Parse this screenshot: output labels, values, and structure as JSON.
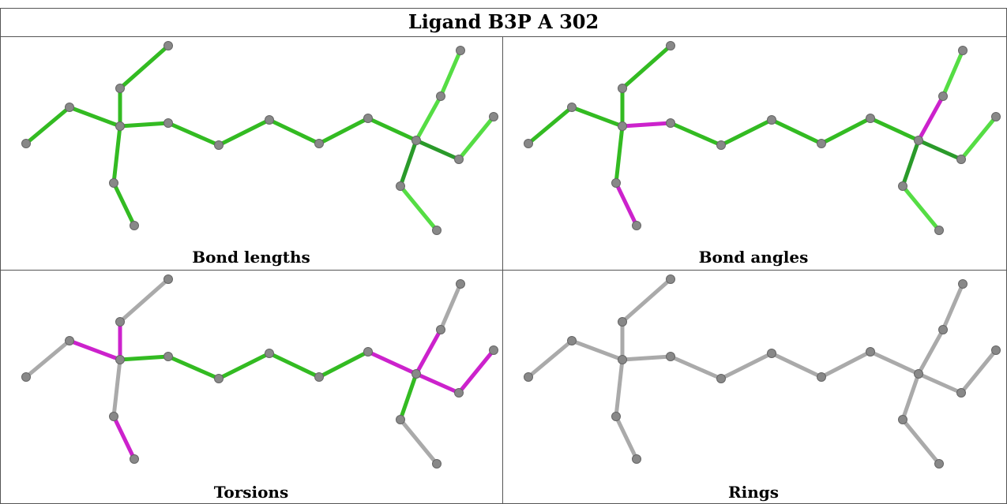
{
  "title": "Ligand B3P A 302",
  "panels": [
    {
      "id": "bond-lengths",
      "caption": "Bond lengths",
      "bonds": [
        "g",
        "g",
        "g",
        "g",
        "g",
        "g",
        "g",
        "g",
        "g",
        "g",
        "g",
        "g",
        "lg",
        "lg",
        "dg",
        "lg",
        "dg",
        "lg",
        "lg",
        "g",
        "g"
      ]
    },
    {
      "id": "bond-angles",
      "caption": "Bond angles",
      "bonds": [
        "g",
        "g",
        "g",
        "g",
        "g",
        "m",
        "m",
        "g",
        "g",
        "g",
        "g",
        "g",
        "m",
        "lg",
        "dg",
        "lg",
        "dg",
        "lg",
        "lg",
        "m",
        "g"
      ]
    },
    {
      "id": "torsions",
      "caption": "Torsions",
      "bonds": [
        "gr",
        "m",
        "m",
        "gr",
        "gr",
        "m",
        "g",
        "g",
        "g",
        "g",
        "g",
        "m",
        "m",
        "gr",
        "g",
        "gr",
        "m",
        "m",
        "gr",
        "gr",
        "g"
      ]
    },
    {
      "id": "rings",
      "caption": "Rings",
      "bonds": [
        "gr",
        "gr",
        "gr",
        "gr",
        "gr",
        "gr",
        "gr",
        "gr",
        "gr",
        "gr",
        "gr",
        "gr",
        "gr",
        "gr",
        "gr",
        "gr",
        "gr",
        "gr",
        "gr",
        "gr",
        "gr"
      ]
    }
  ],
  "colors": {
    "g": "#33bb22",
    "lg": "#55dd44",
    "dg": "#2a9a2a",
    "m": "#cc22cc",
    "gr": "#aaaaaa",
    "atom": "#888888",
    "border": "#555555"
  }
}
